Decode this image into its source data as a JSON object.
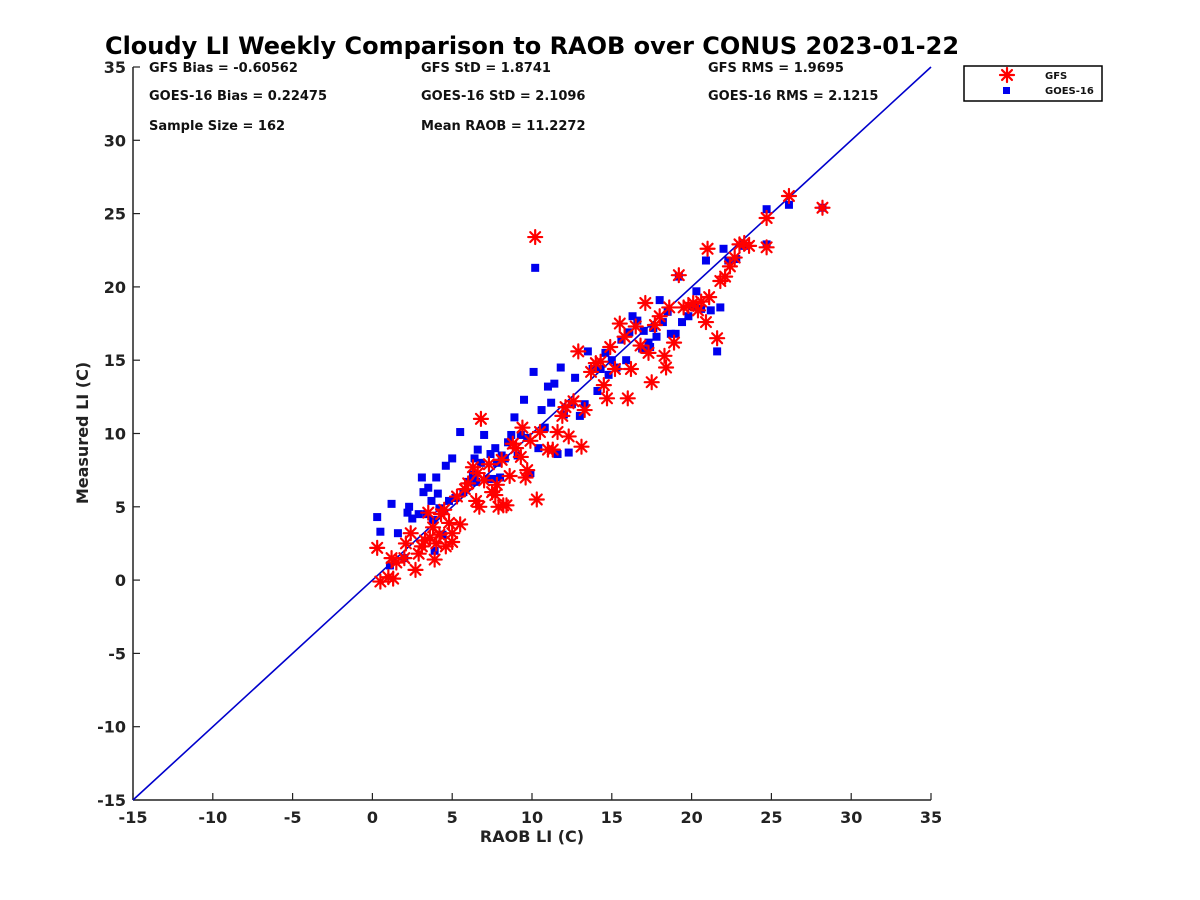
{
  "chart_data": {
    "type": "scatter",
    "title": "Cloudy LI Weekly Comparison to RAOB over CONUS 2023-01-22",
    "xlabel": "RAOB LI (C)",
    "ylabel": "Measured LI (C)",
    "xlim": [
      -15,
      35
    ],
    "ylim": [
      -15,
      35
    ],
    "xticks": [
      "-15",
      "-10",
      "-5",
      "0",
      "5",
      "10",
      "15",
      "20",
      "25",
      "30",
      "35"
    ],
    "yticks": [
      "-15",
      "-10",
      "-5",
      "0",
      "5",
      "10",
      "15",
      "20",
      "25",
      "30",
      "35"
    ],
    "grid": false,
    "legend_position": "outside-top-right",
    "reference_line": {
      "from": [
        -15,
        -15
      ],
      "to": [
        35,
        35
      ],
      "color": "#0000cc"
    },
    "stats": {
      "row1": [
        "GFS Bias = -0.60562",
        "GFS StD = 1.8741",
        "GFS RMS = 1.9695"
      ],
      "row2": [
        "GOES-16 Bias = 0.22475",
        "GOES-16 StD = 2.1096",
        "GOES-16 RMS = 2.1215"
      ],
      "row3": [
        "Sample Size = 162",
        "Mean RAOB = 11.2272"
      ]
    },
    "series": [
      {
        "name": "GFS",
        "marker": "asterisk",
        "color": "#ff0000",
        "points": [
          [
            0.3,
            2.2
          ],
          [
            0.5,
            -0.1
          ],
          [
            1.0,
            0.2
          ],
          [
            1.2,
            1.5
          ],
          [
            1.5,
            1.2
          ],
          [
            1.3,
            0.1
          ],
          [
            2.0,
            1.5
          ],
          [
            2.1,
            2.5
          ],
          [
            2.4,
            3.2
          ],
          [
            2.7,
            0.7
          ],
          [
            2.9,
            1.8
          ],
          [
            3.1,
            2.3
          ],
          [
            3.3,
            2.7
          ],
          [
            3.5,
            4.6
          ],
          [
            3.6,
            2.9
          ],
          [
            3.8,
            3.6
          ],
          [
            3.9,
            1.4
          ],
          [
            4.0,
            2.5
          ],
          [
            4.2,
            3.1
          ],
          [
            4.3,
            4.5
          ],
          [
            4.5,
            4.8
          ],
          [
            4.6,
            2.3
          ],
          [
            4.8,
            3.9
          ],
          [
            5.0,
            2.6
          ],
          [
            5.0,
            3.2
          ],
          [
            5.3,
            5.7
          ],
          [
            5.5,
            3.8
          ],
          [
            5.8,
            6.2
          ],
          [
            6.0,
            6.6
          ],
          [
            6.3,
            7.7
          ],
          [
            6.5,
            5.4
          ],
          [
            6.6,
            7.3
          ],
          [
            6.7,
            5.0
          ],
          [
            6.8,
            11.0
          ],
          [
            7.0,
            6.8
          ],
          [
            7.3,
            7.9
          ],
          [
            7.5,
            6.0
          ],
          [
            7.7,
            5.8
          ],
          [
            7.8,
            6.5
          ],
          [
            7.9,
            5.0
          ],
          [
            8.1,
            8.2
          ],
          [
            8.2,
            5.1
          ],
          [
            8.4,
            5.1
          ],
          [
            8.6,
            7.1
          ],
          [
            8.8,
            9.3
          ],
          [
            9.0,
            9.0
          ],
          [
            9.3,
            8.4
          ],
          [
            9.4,
            10.4
          ],
          [
            9.6,
            7.0
          ],
          [
            9.7,
            7.5
          ],
          [
            9.9,
            9.5
          ],
          [
            10.2,
            23.4
          ],
          [
            10.3,
            5.5
          ],
          [
            10.5,
            10.1
          ],
          [
            11.0,
            8.9
          ],
          [
            11.3,
            8.9
          ],
          [
            11.6,
            10.1
          ],
          [
            11.9,
            11.2
          ],
          [
            12.1,
            11.8
          ],
          [
            12.3,
            9.8
          ],
          [
            12.6,
            12.2
          ],
          [
            12.9,
            15.6
          ],
          [
            13.1,
            9.1
          ],
          [
            13.3,
            11.6
          ],
          [
            13.7,
            14.2
          ],
          [
            14.0,
            14.8
          ],
          [
            14.3,
            14.9
          ],
          [
            14.5,
            13.3
          ],
          [
            14.7,
            12.4
          ],
          [
            14.9,
            15.9
          ],
          [
            15.2,
            14.4
          ],
          [
            15.5,
            17.5
          ],
          [
            15.8,
            16.6
          ],
          [
            16.0,
            12.4
          ],
          [
            16.2,
            14.4
          ],
          [
            16.5,
            17.3
          ],
          [
            16.8,
            16.0
          ],
          [
            17.1,
            18.9
          ],
          [
            17.3,
            15.5
          ],
          [
            17.5,
            13.5
          ],
          [
            17.7,
            17.4
          ],
          [
            18.0,
            18.0
          ],
          [
            18.3,
            15.3
          ],
          [
            18.4,
            14.5
          ],
          [
            18.6,
            18.6
          ],
          [
            18.9,
            16.2
          ],
          [
            19.2,
            20.8
          ],
          [
            19.5,
            18.6
          ],
          [
            19.8,
            18.7
          ],
          [
            20.1,
            18.9
          ],
          [
            20.4,
            18.4
          ],
          [
            20.6,
            19.0
          ],
          [
            20.9,
            17.6
          ],
          [
            21.0,
            22.6
          ],
          [
            21.1,
            19.3
          ],
          [
            21.6,
            16.5
          ],
          [
            21.8,
            20.4
          ],
          [
            22.1,
            20.7
          ],
          [
            22.4,
            21.4
          ],
          [
            22.7,
            22.0
          ],
          [
            23.0,
            22.9
          ],
          [
            23.3,
            23.0
          ],
          [
            23.6,
            22.8
          ],
          [
            24.7,
            24.7
          ],
          [
            24.7,
            22.7
          ],
          [
            26.1,
            26.2
          ],
          [
            28.2,
            25.4
          ]
        ]
      },
      {
        "name": "GOES-16",
        "marker": "square",
        "color": "#0000ee",
        "points": [
          [
            0.3,
            4.3
          ],
          [
            0.5,
            3.3
          ],
          [
            1.2,
            5.2
          ],
          [
            1.1,
            1.0
          ],
          [
            1.6,
            3.2
          ],
          [
            2.0,
            1.5
          ],
          [
            2.2,
            4.6
          ],
          [
            2.3,
            5.0
          ],
          [
            2.5,
            4.2
          ],
          [
            2.9,
            4.5
          ],
          [
            3.1,
            7.0
          ],
          [
            3.2,
            6.0
          ],
          [
            3.4,
            4.5
          ],
          [
            3.5,
            6.3
          ],
          [
            3.7,
            5.4
          ],
          [
            3.8,
            4.1
          ],
          [
            3.9,
            2.0
          ],
          [
            4.0,
            7.0
          ],
          [
            4.1,
            5.9
          ],
          [
            4.2,
            4.9
          ],
          [
            4.4,
            3.1
          ],
          [
            4.6,
            7.8
          ],
          [
            4.8,
            5.4
          ],
          [
            5.0,
            8.3
          ],
          [
            5.2,
            5.6
          ],
          [
            5.5,
            10.1
          ],
          [
            5.7,
            6.0
          ],
          [
            6.0,
            6.7
          ],
          [
            6.3,
            7.2
          ],
          [
            6.4,
            8.3
          ],
          [
            6.5,
            6.7
          ],
          [
            6.6,
            8.9
          ],
          [
            6.8,
            8.0
          ],
          [
            7.0,
            9.9
          ],
          [
            7.2,
            6.9
          ],
          [
            7.4,
            8.6
          ],
          [
            7.6,
            6.9
          ],
          [
            7.7,
            9.0
          ],
          [
            7.8,
            8.0
          ],
          [
            8.0,
            7.0
          ],
          [
            8.1,
            8.5
          ],
          [
            8.3,
            8.3
          ],
          [
            8.5,
            9.4
          ],
          [
            8.7,
            9.9
          ],
          [
            8.9,
            11.1
          ],
          [
            9.1,
            8.5
          ],
          [
            9.3,
            9.9
          ],
          [
            9.5,
            12.3
          ],
          [
            9.7,
            9.7
          ],
          [
            9.9,
            7.3
          ],
          [
            10.1,
            14.2
          ],
          [
            10.2,
            21.3
          ],
          [
            10.4,
            9.0
          ],
          [
            10.6,
            11.6
          ],
          [
            10.8,
            10.4
          ],
          [
            11.0,
            13.2
          ],
          [
            11.2,
            12.1
          ],
          [
            11.4,
            13.4
          ],
          [
            11.6,
            8.6
          ],
          [
            11.8,
            14.5
          ],
          [
            12.0,
            11.3
          ],
          [
            12.3,
            8.7
          ],
          [
            12.5,
            12.0
          ],
          [
            12.7,
            13.8
          ],
          [
            13.0,
            11.2
          ],
          [
            13.3,
            12.0
          ],
          [
            13.5,
            15.6
          ],
          [
            13.8,
            14.4
          ],
          [
            14.1,
            12.9
          ],
          [
            14.3,
            14.4
          ],
          [
            14.6,
            15.5
          ],
          [
            14.8,
            14.0
          ],
          [
            15.0,
            15.0
          ],
          [
            15.3,
            14.5
          ],
          [
            15.6,
            16.4
          ],
          [
            15.9,
            15.0
          ],
          [
            16.1,
            16.9
          ],
          [
            16.3,
            18.0
          ],
          [
            16.6,
            17.7
          ],
          [
            16.9,
            15.8
          ],
          [
            17.0,
            17.0
          ],
          [
            17.3,
            16.2
          ],
          [
            17.4,
            15.9
          ],
          [
            17.6,
            17.2
          ],
          [
            17.8,
            16.6
          ],
          [
            18.0,
            19.1
          ],
          [
            18.2,
            17.6
          ],
          [
            18.5,
            18.3
          ],
          [
            18.7,
            16.8
          ],
          [
            19.0,
            16.8
          ],
          [
            19.2,
            20.7
          ],
          [
            19.4,
            17.6
          ],
          [
            19.8,
            18.0
          ],
          [
            20.1,
            18.7
          ],
          [
            20.3,
            19.7
          ],
          [
            20.6,
            18.5
          ],
          [
            20.9,
            21.8
          ],
          [
            21.2,
            18.4
          ],
          [
            21.6,
            15.6
          ],
          [
            21.8,
            18.6
          ],
          [
            22.0,
            22.6
          ],
          [
            22.3,
            21.8
          ],
          [
            22.8,
            21.9
          ],
          [
            23.3,
            22.8
          ],
          [
            24.7,
            25.3
          ],
          [
            24.7,
            22.9
          ],
          [
            26.1,
            25.6
          ],
          [
            28.2,
            25.4
          ]
        ]
      }
    ]
  }
}
